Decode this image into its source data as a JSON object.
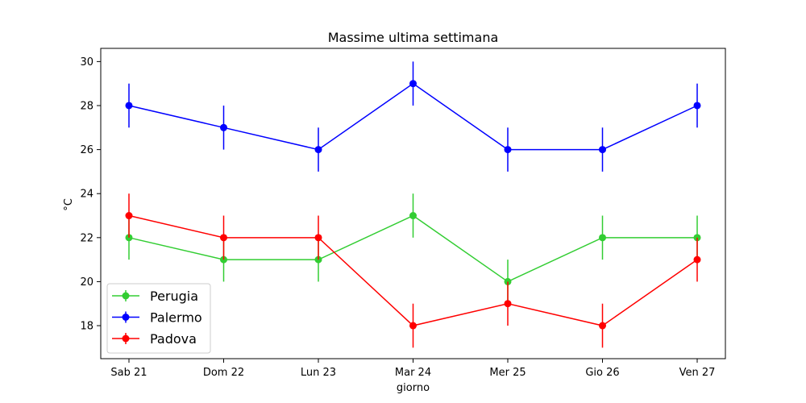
{
  "chart_data": {
    "type": "line",
    "title": "Massime ultima settimana",
    "xlabel": "giorno",
    "ylabel": "°C",
    "categories": [
      "Sab 21",
      "Dom 22",
      "Lun 23",
      "Mar 24",
      "Mer 25",
      "Gio 26",
      "Ven 27"
    ],
    "ylim": [
      16.5,
      30.6
    ],
    "yticks": [
      "18",
      "20",
      "22",
      "24",
      "26",
      "28",
      "30"
    ],
    "error": 1,
    "grid": false,
    "legend_position": "bottom-left",
    "series": [
      {
        "name": "Perugia",
        "color": "#32cd32",
        "values": [
          22,
          21,
          21,
          23,
          20,
          22,
          22
        ]
      },
      {
        "name": "Palermo",
        "color": "#0000ff",
        "values": [
          28,
          27,
          26,
          29,
          26,
          26,
          28
        ]
      },
      {
        "name": "Padova",
        "color": "#ff0000",
        "values": [
          23,
          22,
          22,
          18,
          19,
          18,
          21
        ]
      }
    ]
  }
}
